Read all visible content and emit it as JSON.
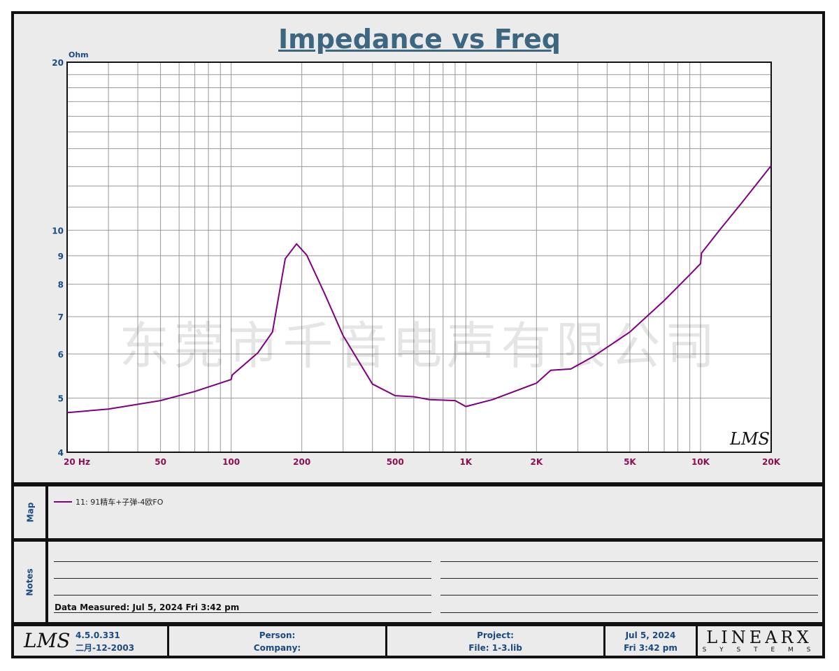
{
  "chart_data": {
    "type": "line",
    "title": "Impedance vs Freq",
    "ylabel": "Ohm",
    "xlabel": "Hz",
    "xscale": "log",
    "yscale": "log",
    "xlim": [
      20,
      20000
    ],
    "ylim": [
      4,
      20
    ],
    "x_ticks": [
      {
        "v": 20,
        "l": "20  Hz"
      },
      {
        "v": 50,
        "l": "50"
      },
      {
        "v": 100,
        "l": "100"
      },
      {
        "v": 200,
        "l": "200"
      },
      {
        "v": 500,
        "l": "500"
      },
      {
        "v": 1000,
        "l": "1K"
      },
      {
        "v": 2000,
        "l": "2K"
      },
      {
        "v": 5000,
        "l": "5K"
      },
      {
        "v": 10000,
        "l": "10K"
      },
      {
        "v": 20000,
        "l": "20K"
      }
    ],
    "y_ticks": [
      {
        "v": 20,
        "l": "20"
      },
      {
        "v": 10,
        "l": "10"
      },
      {
        "v": 9,
        "l": "9"
      },
      {
        "v": 8,
        "l": "8"
      },
      {
        "v": 7,
        "l": "7"
      },
      {
        "v": 6,
        "l": "6"
      },
      {
        "v": 5,
        "l": "5"
      },
      {
        "v": 4,
        "l": "4"
      }
    ],
    "grid": true,
    "series": [
      {
        "name": "11: 91精车+子弹-4欧FO",
        "color": "#800080",
        "x": [
          20,
          30,
          50,
          70,
          100,
          101,
          130,
          150,
          170,
          190,
          210,
          250,
          300,
          400,
          500,
          600,
          700,
          900,
          1000,
          1300,
          2000,
          2300,
          2800,
          3500,
          5000,
          7000,
          9000,
          10000,
          10100,
          12000,
          15000,
          20000
        ],
        "y": [
          4.71,
          4.78,
          4.95,
          5.14,
          5.4,
          5.5,
          6.03,
          6.57,
          8.89,
          9.45,
          9.02,
          7.7,
          6.47,
          5.3,
          5.05,
          5.03,
          4.97,
          4.95,
          4.83,
          4.97,
          5.32,
          5.61,
          5.64,
          5.94,
          6.57,
          7.48,
          8.32,
          8.71,
          9.1,
          9.98,
          11.2,
          13.05
        ]
      }
    ],
    "watermark": "东莞市千音电声有限公司",
    "logo": "LMS"
  },
  "legend_label": "11: 91精车+子弹-4欧FO",
  "map_label": "Map",
  "notes_label": "Notes",
  "data_measured": "Data Measured: Jul  5, 2024  Fri  3:42 pm",
  "footer": {
    "logo": "LMS",
    "version": "4.5.0.331",
    "version_date": "二月-12-2003",
    "person": "Person:",
    "company": "Company:",
    "project": "Project:",
    "file": "File: 1-3.lib",
    "date": "Jul  5, 2024",
    "time": "Fri  3:42 pm",
    "brand": "LINEARX",
    "brand_sub": "S Y S T E M S"
  }
}
